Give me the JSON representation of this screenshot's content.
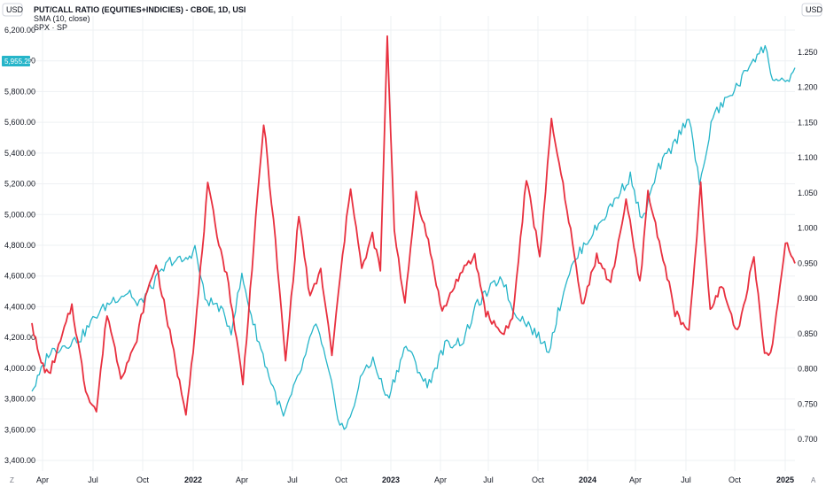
{
  "header": {
    "title": "PUT/CALL RATIO (EQUITIES+INDICIES) - CBOE, 1D, USI",
    "indicator": "SMA (10, close)",
    "series": "SPX · SP"
  },
  "units": {
    "left": "USD",
    "right": "USD"
  },
  "corner": {
    "left": "Z",
    "right": "A"
  },
  "badge": {
    "left_value": "5,955.25"
  },
  "colors": {
    "spx": "#26b5c9",
    "pcr": "#e8303f",
    "grid": "#eef0f3",
    "badge": "#26b5c9"
  },
  "chart_data": {
    "type": "line",
    "x_ticks": [
      "Apr",
      "Jul",
      "Oct",
      "2022",
      "Apr",
      "Jul",
      "Oct",
      "2023",
      "Apr",
      "Jul",
      "Oct",
      "2024",
      "Apr",
      "Jul",
      "Oct",
      "2025"
    ],
    "left_axis": {
      "ticks": [
        "6,200.00",
        "6,000.00",
        "5,800.00",
        "5,600.00",
        "5,400.00",
        "5,200.00",
        "5,000.00",
        "4,800.00",
        "4,600.00",
        "4,400.00",
        "4,200.00",
        "4,000.00",
        "3,800.00",
        "3,600.00",
        "3,400.00"
      ],
      "ylim": [
        3400,
        6200
      ]
    },
    "right_axis": {
      "ticks": [
        "1.250",
        "1.200",
        "1.150",
        "1.100",
        "1.050",
        "1.000",
        "0.950",
        "0.900",
        "0.850",
        "0.800",
        "0.750",
        "0.700"
      ],
      "ylim": [
        0.6875,
        1.2875
      ]
    },
    "series": [
      {
        "name": "SPX · SP",
        "axis": "left",
        "x": [
          "2021-03-01",
          "2021-03-15",
          "2021-04-01",
          "2021-05-01",
          "2021-06-01",
          "2021-07-01",
          "2021-08-01",
          "2021-09-01",
          "2021-09-15",
          "2021-10-15",
          "2021-11-15",
          "2021-12-15",
          "2022-01-01",
          "2022-01-20",
          "2022-02-15",
          "2022-03-10",
          "2022-03-30",
          "2022-04-20",
          "2022-05-20",
          "2022-06-16",
          "2022-07-20",
          "2022-08-16",
          "2022-09-10",
          "2022-09-30",
          "2022-10-12",
          "2022-11-15",
          "2022-12-01",
          "2022-12-28",
          "2023-02-01",
          "2023-03-13",
          "2023-04-15",
          "2023-05-20",
          "2023-06-15",
          "2023-07-31",
          "2023-08-20",
          "2023-09-15",
          "2023-10-27",
          "2023-12-01",
          "2023-12-28",
          "2024-02-01",
          "2024-03-28",
          "2024-04-19",
          "2024-05-20",
          "2024-06-20",
          "2024-07-16",
          "2024-08-05",
          "2024-08-30",
          "2024-09-25",
          "2024-10-20",
          "2024-11-10",
          "2024-12-06",
          "2024-12-20",
          "2025-01-13",
          "2025-01-31"
        ],
        "values": [
          3850,
          3950,
          4100,
          4150,
          4200,
          4350,
          4450,
          4500,
          4400,
          4550,
          4700,
          4700,
          4780,
          4450,
          4400,
          4250,
          4600,
          4300,
          3950,
          3680,
          4000,
          4300,
          3950,
          3640,
          3600,
          4000,
          4050,
          3800,
          4150,
          3880,
          4150,
          4180,
          4420,
          4600,
          4380,
          4300,
          4120,
          4600,
          4780,
          4950,
          5250,
          4950,
          5300,
          5470,
          5650,
          5180,
          5640,
          5750,
          5860,
          6000,
          6090,
          5890,
          5840,
          5955.25
        ]
      },
      {
        "name": "SMA (10, close)",
        "axis": "right",
        "x": [
          "2021-03-01",
          "2021-03-15",
          "2021-04-01",
          "2021-04-20",
          "2021-05-15",
          "2021-06-10",
          "2021-06-30",
          "2021-07-20",
          "2021-08-15",
          "2021-09-10",
          "2021-09-30",
          "2021-10-20",
          "2021-11-15",
          "2021-12-03",
          "2021-12-15",
          "2022-01-01",
          "2022-01-25",
          "2022-02-15",
          "2022-03-05",
          "2022-04-01",
          "2022-04-25",
          "2022-05-10",
          "2022-06-01",
          "2022-06-20",
          "2022-07-15",
          "2022-08-05",
          "2022-08-25",
          "2022-09-15",
          "2022-10-05",
          "2022-10-20",
          "2022-11-10",
          "2022-11-30",
          "2022-12-15",
          "2022-12-28",
          "2023-01-10",
          "2023-01-30",
          "2023-02-20",
          "2023-03-15",
          "2023-04-10",
          "2023-05-10",
          "2023-06-10",
          "2023-07-01",
          "2023-07-31",
          "2023-08-20",
          "2023-09-15",
          "2023-10-10",
          "2023-11-01",
          "2023-11-30",
          "2023-12-28",
          "2024-01-25",
          "2024-02-20",
          "2024-03-20",
          "2024-04-15",
          "2024-04-30",
          "2024-05-25",
          "2024-06-20",
          "2024-07-16",
          "2024-08-07",
          "2024-08-25",
          "2024-09-15",
          "2024-10-15",
          "2024-11-15",
          "2024-12-05",
          "2024-12-20",
          "2025-01-13",
          "2025-01-31"
        ],
        "values": [
          0.865,
          0.815,
          0.79,
          0.83,
          0.89,
          0.77,
          0.74,
          0.88,
          0.79,
          0.83,
          0.9,
          0.95,
          0.85,
          0.78,
          0.74,
          0.85,
          1.06,
          0.98,
          0.92,
          0.78,
          1.01,
          1.15,
          0.98,
          0.81,
          1.02,
          0.9,
          0.94,
          0.82,
          0.96,
          1.06,
          0.94,
          0.99,
          0.94,
          1.27,
          1.0,
          0.89,
          1.05,
          0.98,
          0.88,
          0.93,
          0.96,
          0.88,
          0.85,
          0.87,
          1.07,
          0.96,
          1.15,
          1.03,
          0.89,
          0.96,
          0.92,
          1.04,
          0.92,
          1.05,
          0.97,
          0.88,
          0.85,
          1.06,
          0.88,
          0.92,
          0.85,
          0.96,
          0.82,
          0.83,
          0.98,
          0.95
        ]
      }
    ],
    "grid": true
  }
}
